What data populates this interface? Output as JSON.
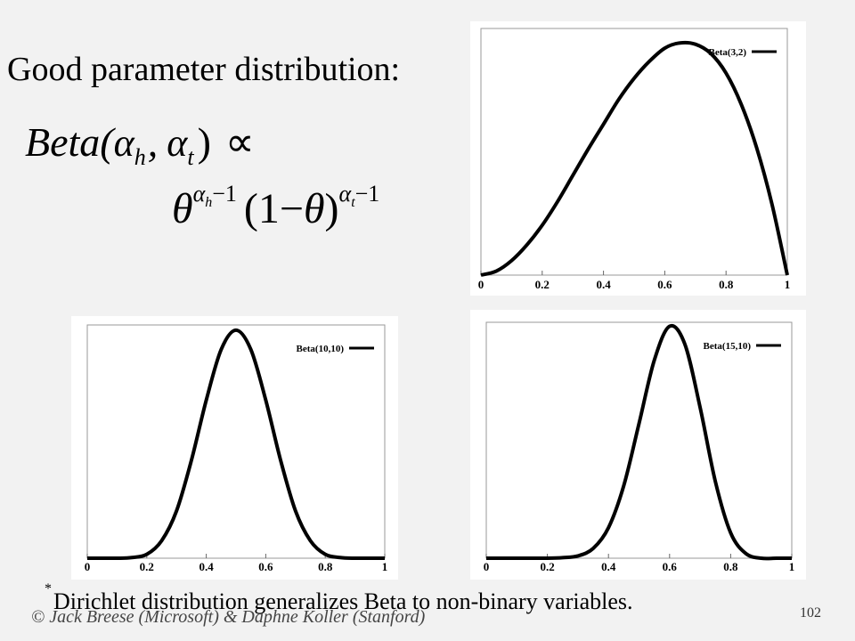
{
  "title": "Good parameter distribution:",
  "formula": {
    "line1": [
      "Beta(",
      "α",
      "h",
      ",",
      "α",
      "t",
      ")",
      "∝"
    ],
    "line2": [
      "θ",
      "α",
      "h",
      "−1",
      "(1−",
      "θ",
      ")",
      "α",
      "t",
      "−1"
    ]
  },
  "footnote": {
    "marker": "*",
    "text": "Dirichlet distribution generalizes Beta to non-binary variables."
  },
  "copyright": "© Jack Breese (Microsoft) & Daphne Koller (Stanford)",
  "page_number": "102",
  "chart_data": [
    {
      "type": "line",
      "legend": "upper right",
      "x": [
        0,
        0.05,
        0.1,
        0.15,
        0.2,
        0.25,
        0.3,
        0.35,
        0.4,
        0.45,
        0.5,
        0.55,
        0.6,
        0.65,
        0.7,
        0.75,
        0.8,
        0.85,
        0.9,
        0.95,
        1
      ],
      "series": [
        {
          "name": "Beta(3,2)",
          "color": "#000000",
          "values": [
            0,
            0.03,
            0.11,
            0.23,
            0.38,
            0.56,
            0.76,
            0.96,
            1.15,
            1.34,
            1.5,
            1.63,
            1.73,
            1.77,
            1.76,
            1.69,
            1.54,
            1.3,
            0.97,
            0.54,
            0
          ]
        }
      ],
      "xlim": [
        0,
        1
      ],
      "xticks": [
        0,
        0.2,
        0.4,
        0.6,
        0.8,
        1
      ],
      "ylim": [
        0,
        1.88
      ]
    },
    {
      "type": "line",
      "legend": "upper right",
      "x": [
        0,
        0.05,
        0.1,
        0.15,
        0.2,
        0.25,
        0.3,
        0.35,
        0.4,
        0.45,
        0.5,
        0.55,
        0.6,
        0.65,
        0.7,
        0.75,
        0.8,
        0.85,
        0.9,
        0.95,
        1
      ],
      "series": [
        {
          "name": "Beta(10,10)",
          "color": "#000000",
          "values": [
            0,
            0,
            0,
            0.01,
            0.06,
            0.27,
            0.73,
            1.51,
            2.44,
            3.22,
            3.52,
            3.22,
            2.44,
            1.51,
            0.73,
            0.27,
            0.06,
            0.01,
            0,
            0,
            0
          ]
        }
      ],
      "xlim": [
        0,
        1
      ],
      "xticks": [
        0,
        0.2,
        0.4,
        0.6,
        0.8,
        1
      ],
      "ylim": [
        0,
        3.6
      ]
    },
    {
      "type": "line",
      "legend": "upper right",
      "x": [
        0,
        0.05,
        0.1,
        0.15,
        0.2,
        0.25,
        0.3,
        0.35,
        0.4,
        0.45,
        0.5,
        0.55,
        0.6,
        0.65,
        0.7,
        0.75,
        0.8,
        0.85,
        0.9,
        0.95,
        1
      ],
      "series": [
        {
          "name": "Beta(15,10)",
          "color": "#000000",
          "values": [
            0,
            0,
            0,
            0,
            0,
            0.01,
            0.04,
            0.17,
            0.53,
            1.26,
            2.34,
            3.44,
            4.03,
            3.72,
            2.62,
            1.33,
            0.44,
            0.08,
            0,
            0,
            0
          ]
        }
      ],
      "xlim": [
        0,
        1
      ],
      "xticks": [
        0,
        0.2,
        0.4,
        0.6,
        0.8,
        1
      ],
      "ylim": [
        0,
        4.1
      ]
    }
  ]
}
